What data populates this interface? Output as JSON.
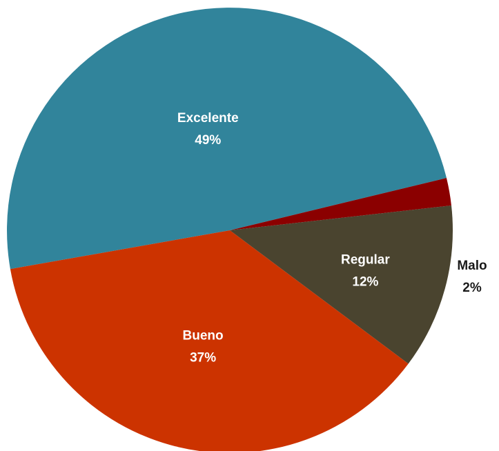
{
  "chart_data": {
    "type": "pie",
    "title": "",
    "slices": [
      {
        "label": "Excelente",
        "value": 49,
        "display": "49%",
        "color": "#31849b"
      },
      {
        "label": "Malo",
        "value": 2,
        "display": "2%",
        "color": "#8b0000"
      },
      {
        "label": "Regular",
        "value": 12,
        "display": "12%",
        "color": "#4a442f"
      },
      {
        "label": "Bueno",
        "value": 37,
        "display": "37%",
        "color": "#cc3300"
      }
    ],
    "legend": "none"
  }
}
